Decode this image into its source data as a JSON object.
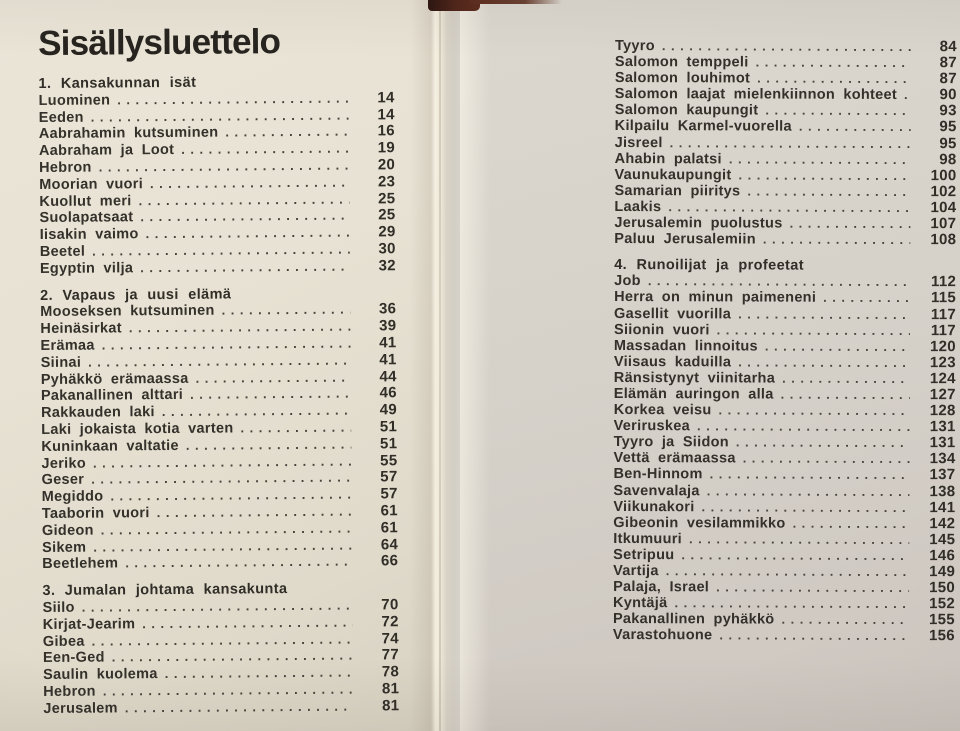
{
  "book": {
    "title": "Sisällysluettelo",
    "colors": {
      "left_page_cream": "#e8e2d4",
      "right_page_gray": "#d3cec6",
      "ink": "#34312b",
      "spine_brown": "#52261a"
    },
    "left_page": {
      "sections": [
        {
          "heading": "1.  Kansakunnan isät",
          "entries": [
            {
              "title": "Luominen",
              "page": "14"
            },
            {
              "title": "Eeden",
              "page": "14"
            },
            {
              "title": "Aabrahamin kutsuminen",
              "page": "16"
            },
            {
              "title": "Aabraham ja Loot",
              "page": "19"
            },
            {
              "title": "Hebron",
              "page": "20"
            },
            {
              "title": "Moorian vuori",
              "page": "23"
            },
            {
              "title": "Kuollut meri",
              "page": "25"
            },
            {
              "title": "Suolapatsaat",
              "page": "25"
            },
            {
              "title": "Iisakin vaimo",
              "page": "29"
            },
            {
              "title": "Beetel",
              "page": "30"
            },
            {
              "title": "Egyptin vilja",
              "page": "32"
            }
          ]
        },
        {
          "heading": "2.  Vapaus ja uusi elämä",
          "entries": [
            {
              "title": "Mooseksen kutsuminen",
              "page": "36"
            },
            {
              "title": "Heinäsirkat",
              "page": "39"
            },
            {
              "title": "Erämaa",
              "page": "41"
            },
            {
              "title": "Siinai",
              "page": "41"
            },
            {
              "title": "Pyhäkkö erämaassa",
              "page": "44"
            },
            {
              "title": "Pakanallinen alttari",
              "page": "46"
            },
            {
              "title": "Rakkauden laki",
              "page": "49"
            },
            {
              "title": "Laki jokaista kotia varten",
              "page": "51"
            },
            {
              "title": "Kuninkaan valtatie",
              "page": "51"
            },
            {
              "title": "Jeriko",
              "page": "55"
            },
            {
              "title": "Geser",
              "page": "57"
            },
            {
              "title": "Megiddo",
              "page": "57"
            },
            {
              "title": "Taaborin vuori",
              "page": "61"
            },
            {
              "title": "Gideon",
              "page": "61"
            },
            {
              "title": "Sikem",
              "page": "64"
            },
            {
              "title": "Beetlehem",
              "page": "66"
            }
          ]
        },
        {
          "heading": "3.  Jumalan johtama kansakunta",
          "entries": [
            {
              "title": "Siilo",
              "page": "70"
            },
            {
              "title": "Kirjat-Jearim",
              "page": "72"
            },
            {
              "title": "Gibea",
              "page": "74"
            },
            {
              "title": "Een-Ged",
              "page": "77"
            },
            {
              "title": "Saulin kuolema",
              "page": "78"
            },
            {
              "title": "Hebron",
              "page": "81"
            },
            {
              "title": "Jerusalem",
              "page": "81"
            }
          ]
        }
      ]
    },
    "right_page": {
      "sections": [
        {
          "heading": null,
          "entries": [
            {
              "title": "Tyyro",
              "page": "84"
            },
            {
              "title": "Salomon temppeli",
              "page": "87"
            },
            {
              "title": "Salomon louhimot",
              "page": "87"
            },
            {
              "title": "Salomon laajat mielenkiinnon kohteet",
              "page": "90"
            },
            {
              "title": "Salomon kaupungit",
              "page": "93"
            },
            {
              "title": "Kilpailu Karmel-vuorella",
              "page": "95"
            },
            {
              "title": "Jisreel",
              "page": "95"
            },
            {
              "title": "Ahabin palatsi",
              "page": "98"
            },
            {
              "title": "Vaunukaupungit",
              "page": "100"
            },
            {
              "title": "Samarian piiritys",
              "page": "102"
            },
            {
              "title": "Laakis",
              "page": "104"
            },
            {
              "title": "Jerusalemin puolustus",
              "page": "107"
            },
            {
              "title": "Paluu Jerusalemiin",
              "page": "108"
            }
          ]
        },
        {
          "heading": "4.  Runoilijat ja profeetat",
          "entries": [
            {
              "title": "Job",
              "page": "112"
            },
            {
              "title": "Herra on minun paimeneni",
              "page": "115"
            },
            {
              "title": "Gasellit vuorilla",
              "page": "117"
            },
            {
              "title": "Siionin vuori",
              "page": "117"
            },
            {
              "title": "Massadan linnoitus",
              "page": "120"
            },
            {
              "title": "Viisaus kaduilla",
              "page": "123"
            },
            {
              "title": "Ränsistynyt viinitarha",
              "page": "124"
            },
            {
              "title": "Elämän auringon alla",
              "page": "127"
            },
            {
              "title": "Korkea veisu",
              "page": "128"
            },
            {
              "title": "Veriruskea",
              "page": "131"
            },
            {
              "title": "Tyyro ja Siidon",
              "page": "131"
            },
            {
              "title": "Vettä erämaassa",
              "page": "134"
            },
            {
              "title": "Ben-Hinnom",
              "page": "137"
            },
            {
              "title": "Savenvalaja",
              "page": "138"
            },
            {
              "title": "Viikunakori",
              "page": "141"
            },
            {
              "title": "Gibeonin vesilammikko",
              "page": "142"
            },
            {
              "title": "Itkumuuri",
              "page": "145"
            },
            {
              "title": "Setripuu",
              "page": "146"
            },
            {
              "title": "Vartija",
              "page": "149"
            },
            {
              "title": "Palaja, Israel",
              "page": "150"
            },
            {
              "title": "Kyntäjä",
              "page": "152"
            },
            {
              "title": "Pakanallinen pyhäkkö",
              "page": "155"
            },
            {
              "title": "Varastohuone",
              "page": "156"
            }
          ]
        }
      ]
    }
  }
}
